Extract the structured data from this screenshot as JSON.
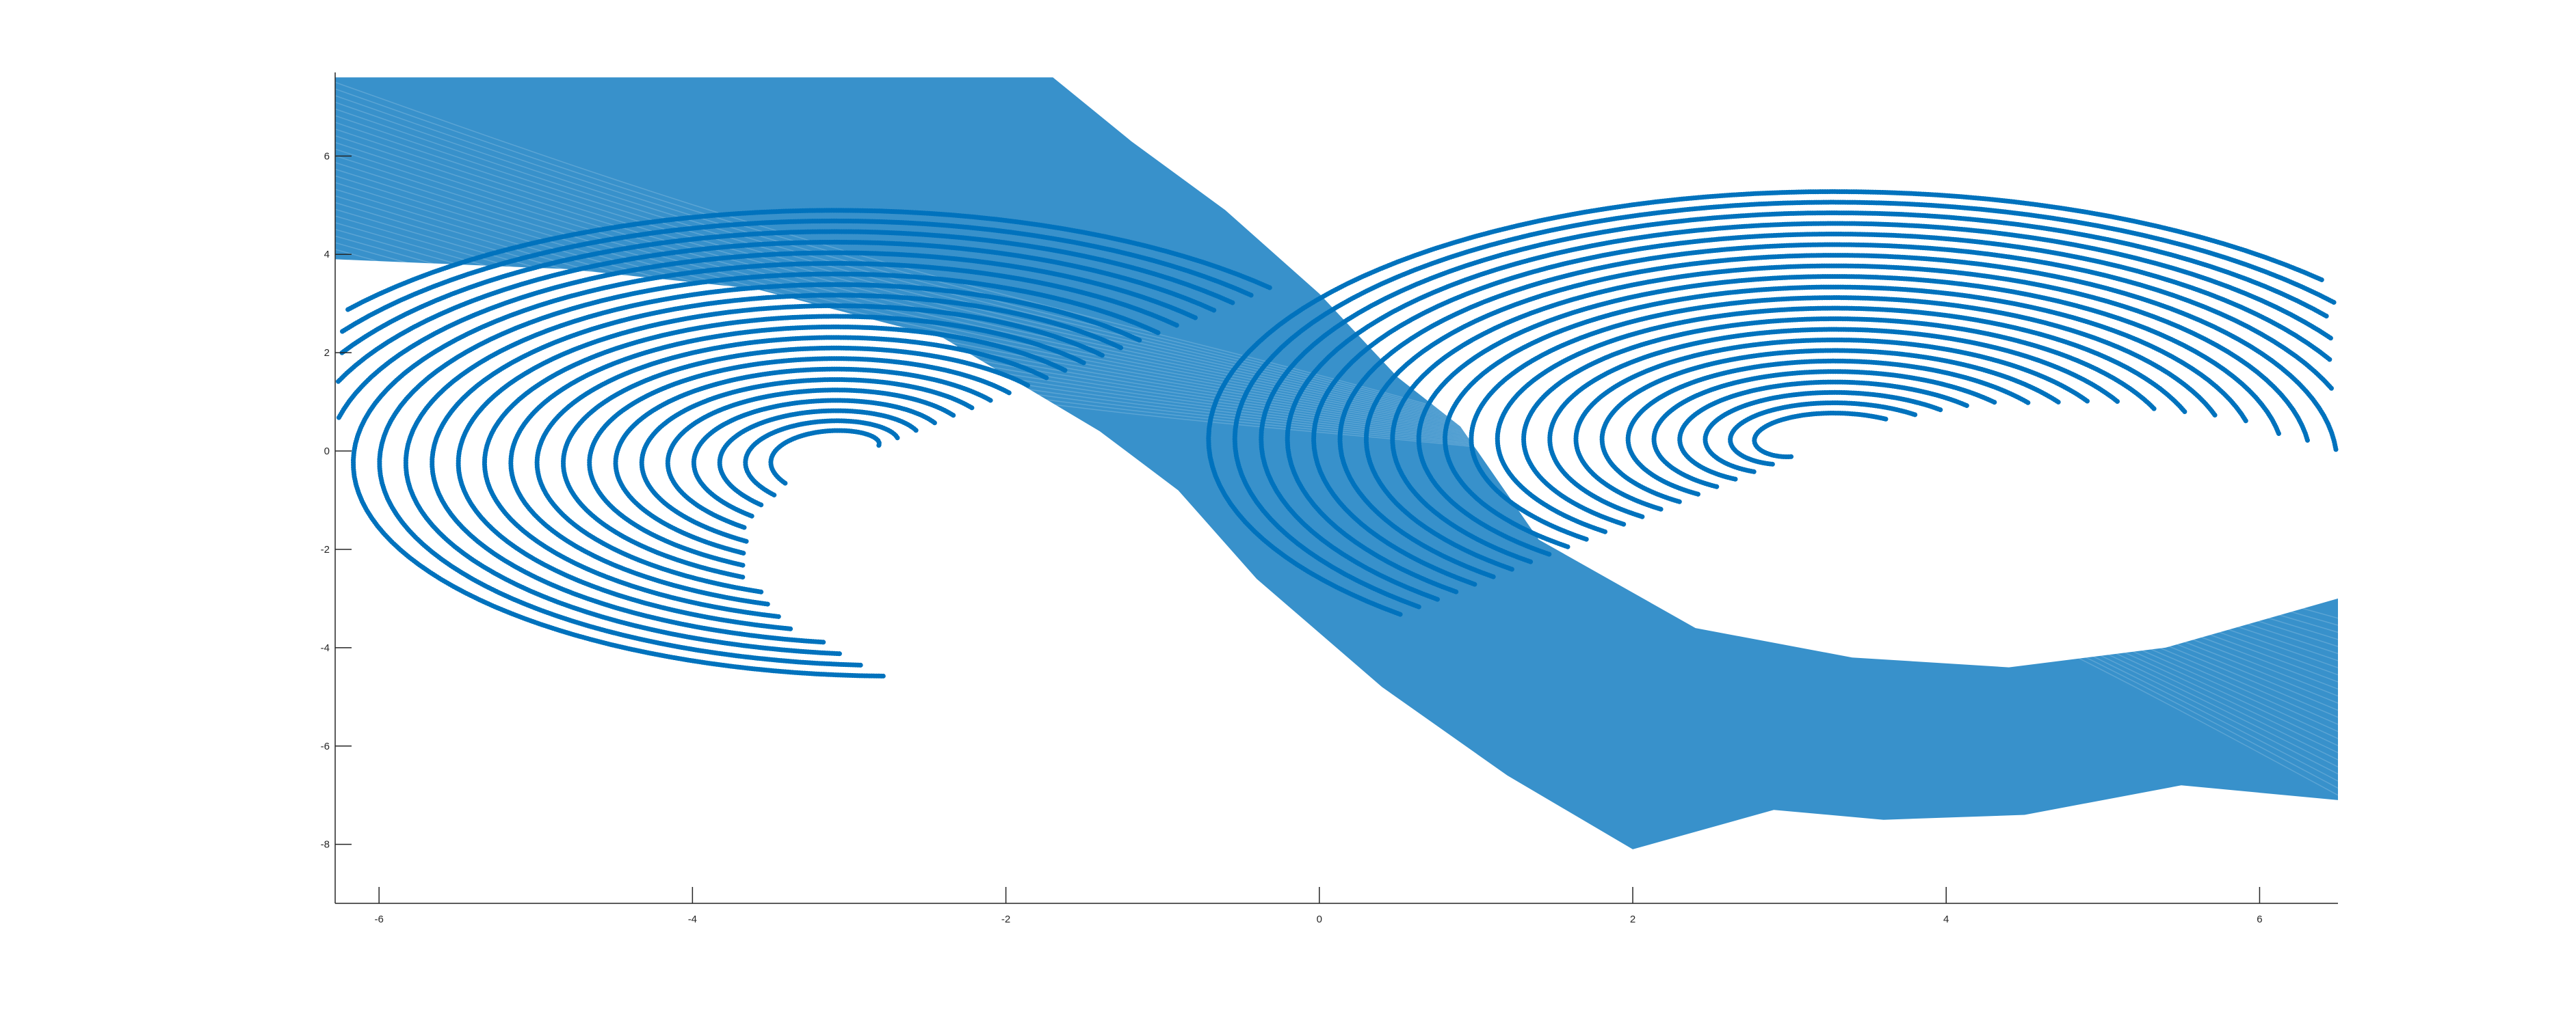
{
  "chart_data": {
    "type": "scatter",
    "title": "",
    "xlabel": "",
    "ylabel": "",
    "xlim": [
      -6.28,
      6.5
    ],
    "ylim": [
      -9.2,
      7.7
    ],
    "x_ticks": [
      -6,
      -4,
      -2,
      0,
      2,
      4,
      6
    ],
    "x_tick_labels": [
      "-6",
      "-4",
      "-2",
      "0",
      "2",
      "4",
      "6"
    ],
    "y_ticks": [
      -8,
      -6,
      -4,
      -2,
      0,
      2,
      4,
      6
    ],
    "y_tick_labels": [
      "-8",
      "-6",
      "-4",
      "-2",
      "0",
      "2",
      "4",
      "6"
    ],
    "grid": false,
    "legend": "none",
    "marker": "open-circle",
    "color": "#0072BD",
    "series": [
      {
        "description_values": "dense family of trajectories forming a diagonal band from upper-left to lower-right with spiral vortices",
        "vortex_centers": [
          [
            -2.9,
            0.0
          ],
          [
            3.1,
            0.0
          ]
        ],
        "band_top_left": [
          -6.28,
          7.6
        ],
        "band_upper_corner": [
          -1.7,
          7.6
        ],
        "band_lower_corner": [
          2.0,
          -8.1
        ],
        "band_right_end": [
          6.5,
          -7.1
        ]
      }
    ]
  }
}
